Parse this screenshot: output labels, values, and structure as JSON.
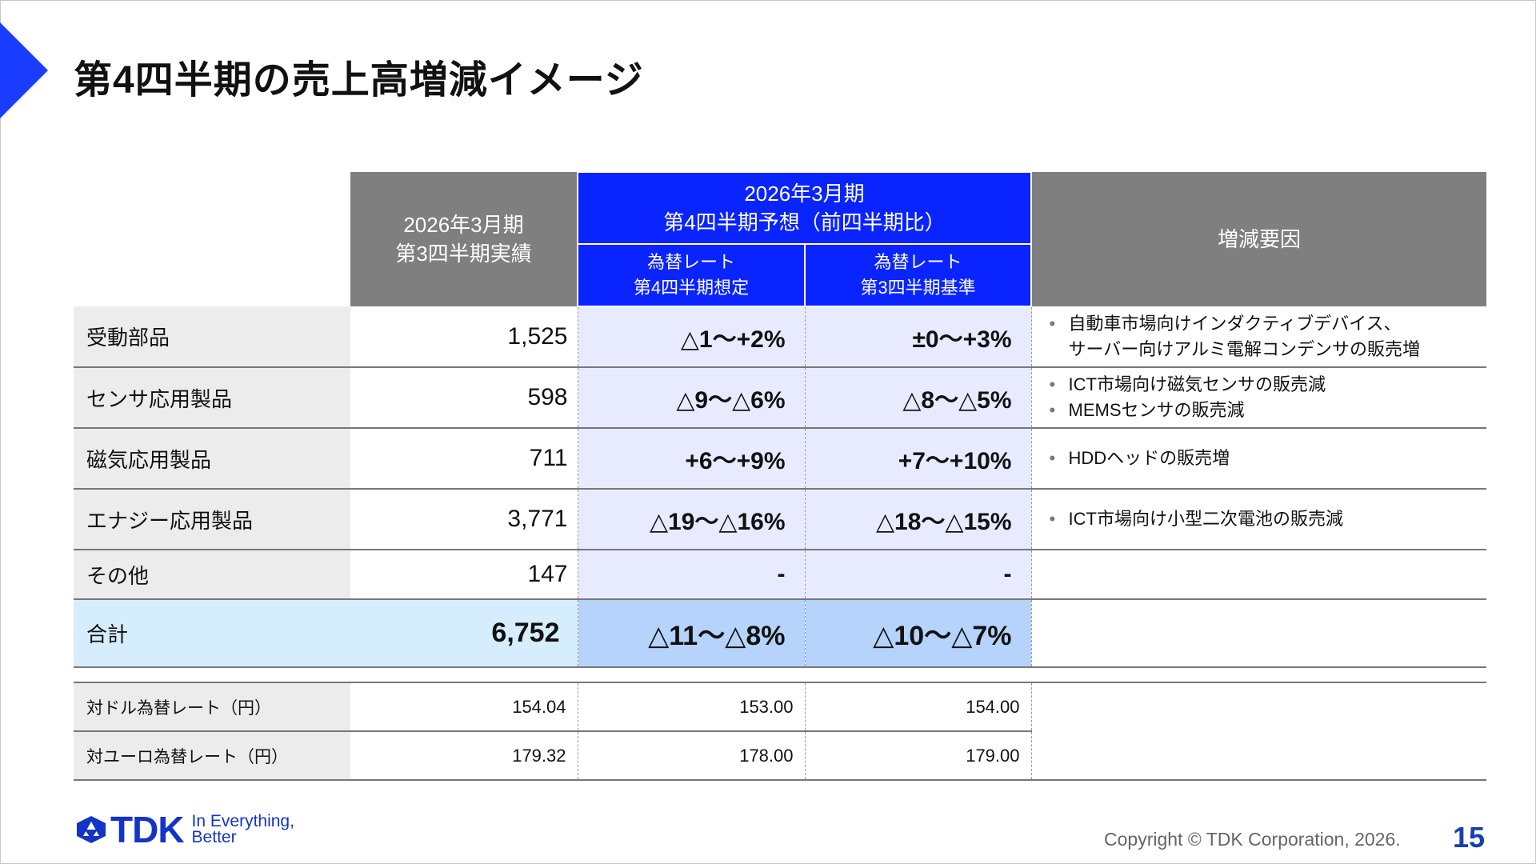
{
  "title": "第4四半期の売上高増減イメージ",
  "header": {
    "actual": [
      "2026年3月期",
      "第3四半期実績"
    ],
    "forecast": [
      "2026年3月期",
      "第4四半期予想（前四半期比）"
    ],
    "sub1": [
      "為替レート",
      "第4四半期想定"
    ],
    "sub2": [
      "為替レート",
      "第3四半期基準"
    ],
    "factors": "増減要因"
  },
  "rows": [
    {
      "label": "受動部品",
      "actual": "1,525",
      "q4": "△1～+2%",
      "q3": "±0～+3%",
      "notes": [
        "自動車市場向けインダクティブデバイス、\nサーバー向けアルミ電解コンデンサの販売増"
      ]
    },
    {
      "label": "センサ応用製品",
      "actual": "598",
      "q4": "△9～△6%",
      "q3": "△8～△5%",
      "notes": [
        "ICT市場向け磁気センサの販売減",
        "MEMSセンサの販売減"
      ]
    },
    {
      "label": "磁気応用製品",
      "actual": "711",
      "q4": "+6～+9%",
      "q3": "+7～+10%",
      "notes": [
        "HDDヘッドの販売増"
      ]
    },
    {
      "label": "エナジー応用製品",
      "actual": "3,771",
      "q4": "△19～△16%",
      "q3": "△18～△15%",
      "notes": [
        "ICT市場向け小型二次電池の販売減"
      ]
    },
    {
      "label": "その他",
      "actual": "147",
      "q4": "-",
      "q3": "-",
      "notes": []
    }
  ],
  "total": {
    "label": "合計",
    "actual": "6,752",
    "q4": "△11～△8%",
    "q3": "△10～△7%"
  },
  "fx": [
    {
      "label": "対ドル為替レート（円）",
      "actual": "154.04",
      "q4": "153.00",
      "q3": "154.00"
    },
    {
      "label": "対ユーロ為替レート（円）",
      "actual": "179.32",
      "q4": "178.00",
      "q3": "179.00"
    }
  ],
  "footer": {
    "logo": "TDK",
    "tagline1": "In Everything,",
    "tagline2": "Better",
    "copyright": "Copyright  © TDK Corporation, 2026.",
    "page": "15"
  },
  "colors": {
    "brand_blue": "#0a24ff",
    "header_gray": "#7f7f7f",
    "forecast_cell": "#e8eaff",
    "total_row": "#d5edfc"
  }
}
